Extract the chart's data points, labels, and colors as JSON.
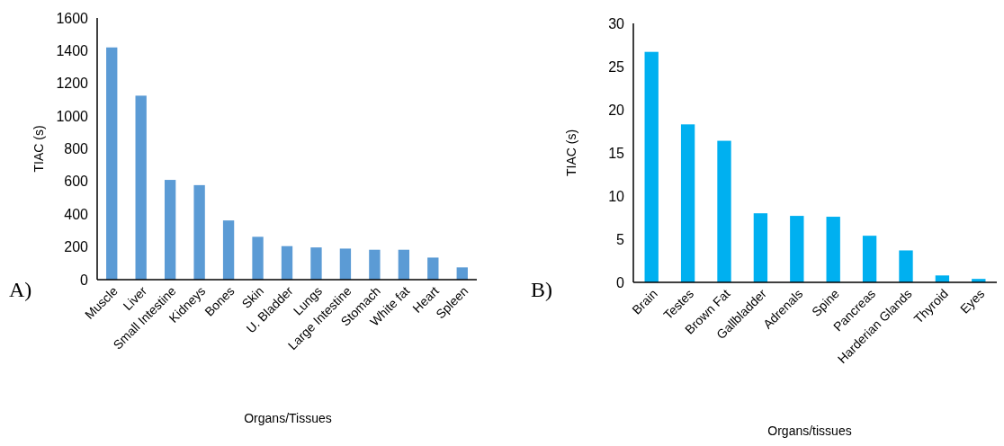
{
  "chart_data": [
    {
      "type": "bar",
      "xlabel": "Organs/Tissues",
      "ylabel": "TIAC (s)",
      "annotations": [
        "A)"
      ],
      "categories": [
        "Muscle",
        "Liver",
        "Small Intestine",
        "Kidneys",
        "Bones",
        "Skin",
        "U. Bladder",
        "Lungs",
        "Large Intestine",
        "Stomach",
        "White fat",
        "Heart",
        "Spleen"
      ],
      "values": [
        1420,
        1125,
        610,
        578,
        362,
        262,
        205,
        197,
        190,
        183,
        183,
        135,
        75
      ],
      "color": "#5b9bd5",
      "ylim": [
        0,
        1600
      ],
      "yticks": [
        0,
        200,
        400,
        600,
        800,
        1000,
        1200,
        1400,
        1600
      ]
    },
    {
      "type": "bar",
      "xlabel": "Organs/tissues",
      "ylabel": "TIAC (s)",
      "annotations": [
        "B)"
      ],
      "categories": [
        "Brain",
        "Testes",
        "Brown Fat",
        "Gallbladder",
        "Adrenals",
        "Spine",
        "Pancreas",
        "Harderian Glands",
        "Thyroid",
        "Eyes"
      ],
      "values": [
        26.7,
        18.3,
        16.4,
        8.0,
        7.7,
        7.6,
        5.4,
        3.7,
        0.8,
        0.4
      ],
      "color": "#00b0f0",
      "ylim": [
        0,
        30
      ],
      "yticks": [
        0,
        5,
        10,
        15,
        20,
        25,
        30
      ]
    }
  ]
}
